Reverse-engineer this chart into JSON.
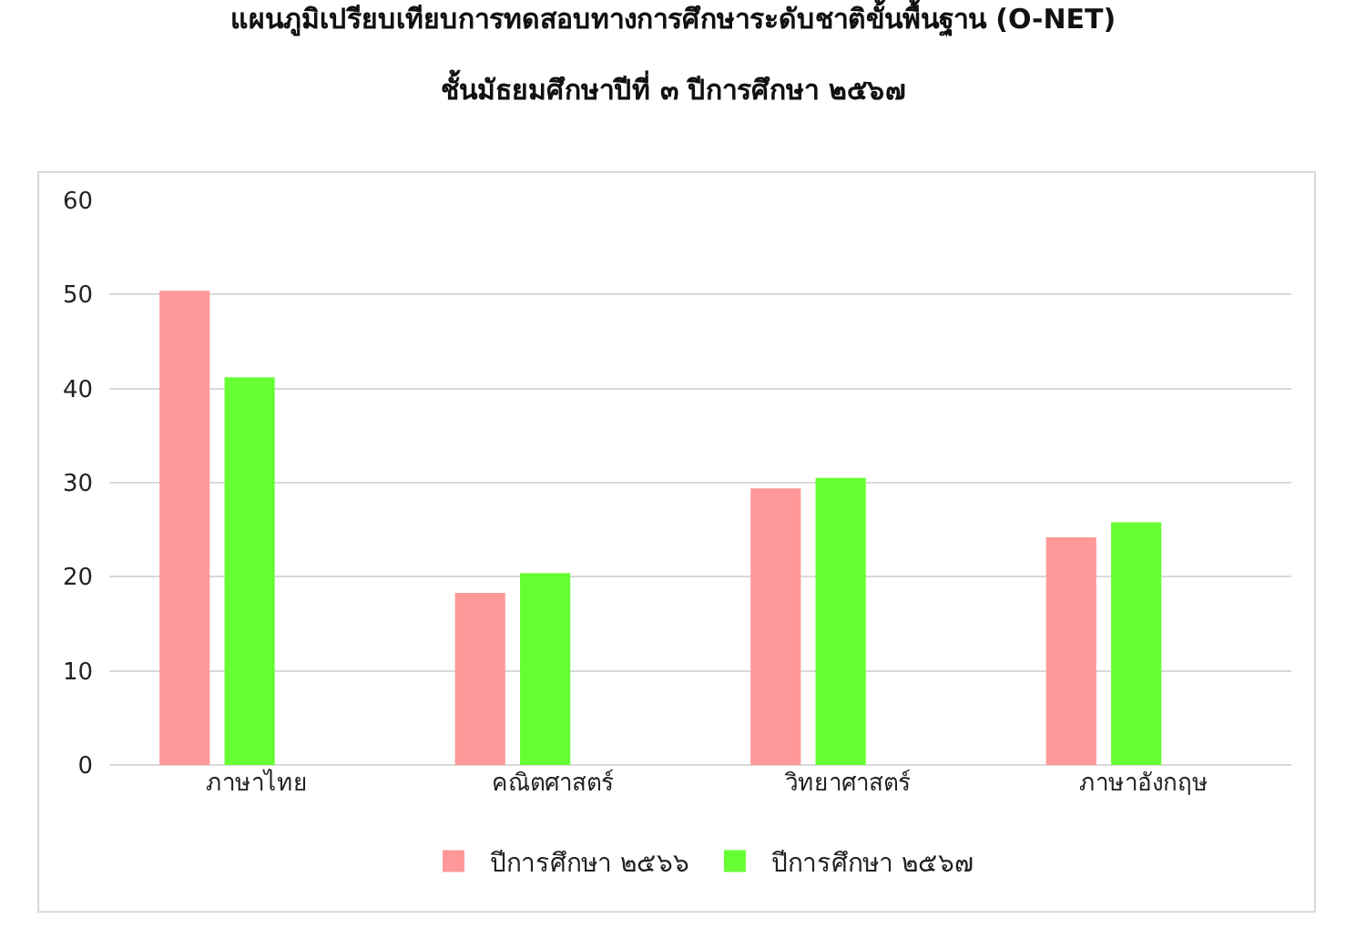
{
  "chart_data": {
    "type": "bar",
    "title": "แผนภูมิเปรียบเทียบการทดสอบทางการศึกษาระดับชาติขั้นพื้นฐาน (O-NET)",
    "subtitle": "ชั้นมัธยมศึกษาปีที่ ๓ ปีการศึกษา ๒๕๖๗",
    "categories": [
      "ภาษาไทย",
      "คณิตศาสตร์",
      "วิทยาศาสตร์",
      "ภาษาอังกฤษ"
    ],
    "series": [
      {
        "name": "ปีการศึกษา ๒๕๖๖",
        "color": "#ff9999",
        "values": [
          50.4,
          18.3,
          29.4,
          24.2
        ]
      },
      {
        "name": "ปีการศึกษา ๒๕๖๗",
        "color": "#66ff33",
        "values": [
          41.2,
          20.4,
          30.5,
          25.8
        ]
      }
    ],
    "ylim": [
      0,
      60
    ],
    "yticks": [
      0,
      10,
      20,
      30,
      40,
      50,
      60
    ],
    "grid": "y",
    "legend": "bottom"
  }
}
